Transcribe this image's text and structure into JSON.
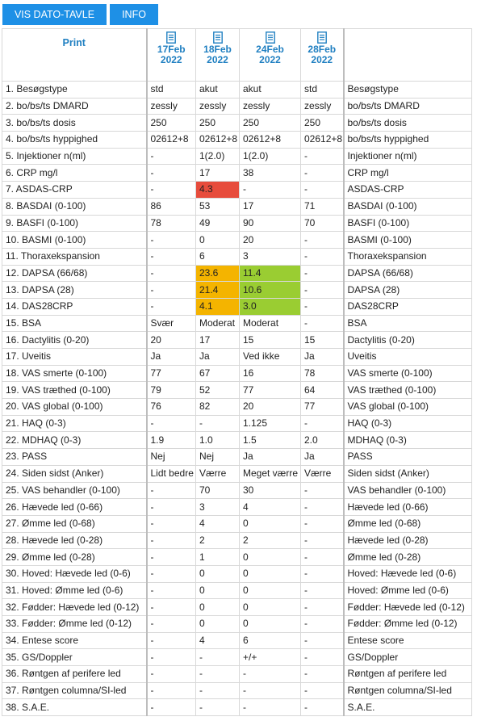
{
  "toolbar": {
    "vis_label": "VIS DATO-TAVLE",
    "info_label": "INFO"
  },
  "print_label": "Print",
  "dates": [
    {
      "day": "17Feb",
      "year": "2022"
    },
    {
      "day": "18Feb",
      "year": "2022"
    },
    {
      "day": "24Feb",
      "year": "2022"
    },
    {
      "day": "28Feb",
      "year": "2022"
    }
  ],
  "colors": {
    "red": "#e74c3c",
    "orange": "#f4b400",
    "green": "#9acd32",
    "link_blue": "#2a86c8"
  },
  "rows": [
    {
      "label": "1. Besøgstype",
      "short": "Besøgstype",
      "values": [
        "std",
        "akut",
        "akut",
        "std"
      ]
    },
    {
      "label": "2. bo/bs/ts DMARD",
      "short": "bo/bs/ts DMARD",
      "values": [
        "zessly",
        "zessly",
        "zessly",
        "zessly"
      ]
    },
    {
      "label": "3. bo/bs/ts dosis",
      "short": "bo/bs/ts dosis",
      "values": [
        "250",
        "250",
        "250",
        "250"
      ]
    },
    {
      "label": "4. bo/bs/ts hyppighed",
      "short": "bo/bs/ts hyppighed",
      "values": [
        "02612+8",
        "02612+8",
        "02612+8",
        "02612+8"
      ]
    },
    {
      "label": "5. Injektioner n(ml)",
      "short": "Injektioner n(ml)",
      "values": [
        "-",
        "1(2.0)",
        "1(2.0)",
        "-"
      ]
    },
    {
      "label": "6. CRP mg/l",
      "short": "CRP mg/l",
      "values": [
        "-",
        "17",
        "38",
        "-"
      ],
      "blue": true
    },
    {
      "label": "7. ASDAS-CRP",
      "short": "ASDAS-CRP",
      "values": [
        "-",
        "4.3",
        "-",
        "-"
      ],
      "status": [
        "",
        "red",
        "",
        ""
      ]
    },
    {
      "label": "8. BASDAI (0-100)",
      "short": "BASDAI (0-100)",
      "values": [
        "86",
        "53",
        "17",
        "71"
      ]
    },
    {
      "label": "9. BASFI (0-100)",
      "short": "BASFI (0-100)",
      "values": [
        "78",
        "49",
        "90",
        "70"
      ]
    },
    {
      "label": "10. BASMI (0-100)",
      "short": "BASMI (0-100)",
      "values": [
        "-",
        "0",
        "20",
        "-"
      ]
    },
    {
      "label": "11. Thoraxekspansion",
      "short": "Thoraxekspansion",
      "values": [
        "-",
        "6",
        "3",
        "-"
      ]
    },
    {
      "label": "12. DAPSA (66/68)",
      "short": "DAPSA (66/68)",
      "values": [
        "-",
        "23.6",
        "11.4",
        "-"
      ],
      "status": [
        "",
        "orange",
        "green",
        ""
      ]
    },
    {
      "label": "13. DAPSA (28)",
      "short": "DAPSA (28)",
      "values": [
        "-",
        "21.4",
        "10.6",
        "-"
      ],
      "status": [
        "",
        "orange",
        "green",
        ""
      ]
    },
    {
      "label": "14. DAS28CRP",
      "short": "DAS28CRP",
      "values": [
        "-",
        "4.1",
        "3.0",
        "-"
      ],
      "status": [
        "",
        "orange",
        "green",
        ""
      ]
    },
    {
      "label": "15. BSA",
      "short": "BSA",
      "values": [
        "Svær",
        "Moderat",
        "Moderat",
        "-"
      ]
    },
    {
      "label": "16. Dactylitis (0-20)",
      "short": "Dactylitis (0-20)",
      "values": [
        "20",
        "17",
        "15",
        "15"
      ]
    },
    {
      "label": "17. Uveitis",
      "short": "Uveitis",
      "values": [
        "Ja",
        "Ja",
        "Ved ikke",
        "Ja"
      ]
    },
    {
      "label": "18. VAS smerte (0-100)",
      "short": "VAS smerte (0-100)",
      "values": [
        "77",
        "67",
        "16",
        "78"
      ],
      "blue": true
    },
    {
      "label": "19. VAS træthed (0-100)",
      "short": "VAS træthed (0-100)",
      "values": [
        "79",
        "52",
        "77",
        "64"
      ],
      "blue": true
    },
    {
      "label": "20. VAS global (0-100)",
      "short": "VAS global (0-100)",
      "values": [
        "76",
        "82",
        "20",
        "77"
      ],
      "blue": true
    },
    {
      "label": "21. HAQ (0-3)",
      "short": "HAQ (0-3)",
      "values": [
        "-",
        "-",
        "1.125",
        "-"
      ]
    },
    {
      "label": "22. MDHAQ (0-3)",
      "short": "MDHAQ (0-3)",
      "values": [
        "1.9",
        "1.0",
        "1.5",
        "2.0"
      ]
    },
    {
      "label": "23. PASS",
      "short": "PASS",
      "values": [
        "Nej",
        "Nej",
        "Ja",
        "Ja"
      ]
    },
    {
      "label": "24. Siden sidst (Anker)",
      "short": "Siden sidst (Anker)",
      "values": [
        "Lidt bedre",
        "Værre",
        "Meget værre",
        "Værre"
      ]
    },
    {
      "label": "25. VAS behandler (0-100)",
      "short": "VAS behandler (0-100)",
      "values": [
        "-",
        "70",
        "30",
        "-"
      ]
    },
    {
      "label": "26. Hævede led (0-66)",
      "short": "Hævede led (0-66)",
      "values": [
        "-",
        "3",
        "4",
        "-"
      ]
    },
    {
      "label": "27. Ømme led (0-68)",
      "short": "Ømme led (0-68)",
      "values": [
        "-",
        "4",
        "0",
        "-"
      ]
    },
    {
      "label": "28. Hævede led (0-28)",
      "short": "Hævede led (0-28)",
      "values": [
        "-",
        "2",
        "2",
        "-"
      ]
    },
    {
      "label": "29. Ømme led (0-28)",
      "short": "Ømme led (0-28)",
      "values": [
        "-",
        "1",
        "0",
        "-"
      ]
    },
    {
      "label": "30. Hoved: Hævede led (0-6)",
      "short": "Hoved: Hævede led (0-6)",
      "values": [
        "-",
        "0",
        "0",
        "-"
      ]
    },
    {
      "label": "31. Hoved: Ømme led (0-6)",
      "short": "Hoved: Ømme led (0-6)",
      "values": [
        "-",
        "0",
        "0",
        "-"
      ]
    },
    {
      "label": "32. Fødder: Hævede led (0-12)",
      "short": "Fødder: Hævede led (0-12)",
      "values": [
        "-",
        "0",
        "0",
        "-"
      ]
    },
    {
      "label": "33. Fødder: Ømme led (0-12)",
      "short": "Fødder: Ømme led (0-12)",
      "values": [
        "-",
        "0",
        "0",
        "-"
      ]
    },
    {
      "label": "34. Entese score",
      "short": "Entese score",
      "values": [
        "-",
        "4",
        "6",
        "-"
      ]
    },
    {
      "label": "35. GS/Doppler",
      "short": "GS/Doppler",
      "values": [
        "-",
        "-",
        "+/+",
        "-"
      ]
    },
    {
      "label": "36. Røntgen af perifere led",
      "short": "Røntgen af perifere led",
      "values": [
        "-",
        "-",
        "-",
        "-"
      ]
    },
    {
      "label": "37. Røntgen columna/SI-led",
      "short": "Røntgen columna/SI-led",
      "values": [
        "-",
        "-",
        "-",
        "-"
      ]
    },
    {
      "label": "38. S.A.E.",
      "short": "S.A.E.",
      "values": [
        "-",
        "-",
        "-",
        "-"
      ]
    }
  ]
}
